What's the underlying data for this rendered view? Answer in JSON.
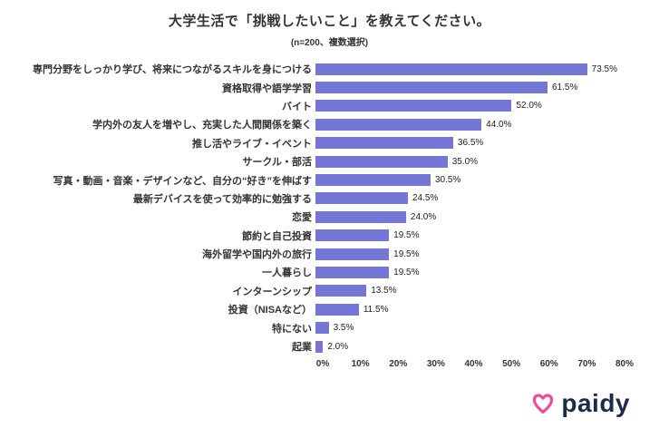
{
  "header": {
    "title": "大学生活で「挑戦したいこと」を教えてください。",
    "subtitle": "(n=200、複数選択)"
  },
  "chart_data": {
    "type": "bar",
    "orientation": "horizontal",
    "title": "大学生活で「挑戦したいこと」を教えてください。",
    "subtitle": "(n=200、複数選択)",
    "categories": [
      "専門分野をしっかり学び、将来につながるスキルを身につける",
      "資格取得や語学学習",
      "バイト",
      "学内外の友人を増やし、充実した人間関係を築く",
      "推し活やライブ・イベント",
      "サークル・部活",
      "写真・動画・音楽・デザインなど、自分の“好き”を伸ばす",
      "最新デバイスを使って効率的に勉強する",
      "恋愛",
      "節約と自己投資",
      "海外留学や国内外の旅行",
      "一人暮らし",
      "インターンシップ",
      "投資（NISAなど）",
      "特にない",
      "起業"
    ],
    "values": [
      73.5,
      61.5,
      52.0,
      44.0,
      36.5,
      35.0,
      30.5,
      24.5,
      24.0,
      19.5,
      19.5,
      19.5,
      13.5,
      11.5,
      3.5,
      2.0
    ],
    "value_labels": [
      "73.5%",
      "61.5%",
      "52.0%",
      "44.0%",
      "36.5%",
      "35.0%",
      "30.5%",
      "24.5%",
      "24.0%",
      "19.5%",
      "19.5%",
      "19.5%",
      "13.5%",
      "11.5%",
      "3.5%",
      "2.0%"
    ],
    "xlim": [
      0,
      80
    ],
    "x_ticks": [
      "0%",
      "10%",
      "20%",
      "30%",
      "40%",
      "50%",
      "60%",
      "70%",
      "80%"
    ],
    "bar_color": "#7577D6",
    "grid": false,
    "legend": false
  },
  "footer": {
    "logo_text": "paidy",
    "logo_heart_color": "#EC4D94",
    "logo_text_color": "#1C2B4A"
  }
}
